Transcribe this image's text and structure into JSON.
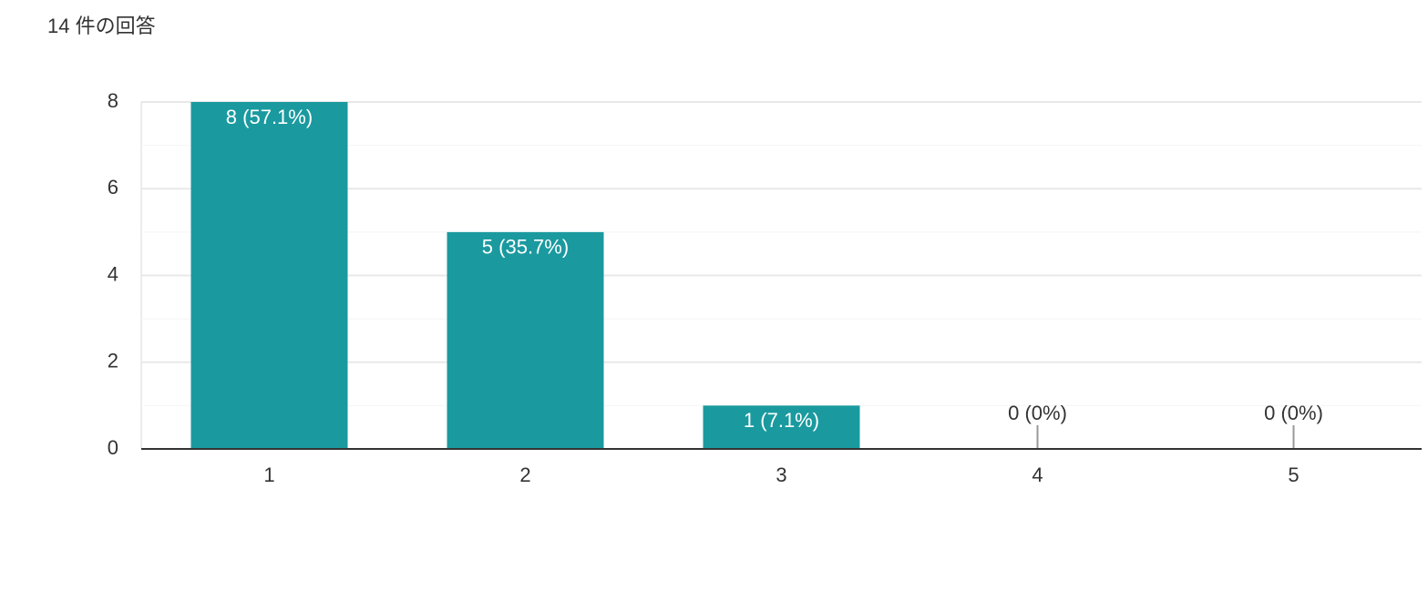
{
  "chart_data": {
    "type": "bar",
    "title": "14 件の回答",
    "categories": [
      "1",
      "2",
      "3",
      "4",
      "5"
    ],
    "values": [
      8,
      5,
      1,
      0,
      0
    ],
    "value_labels": [
      "8 (57.1%)",
      "5 (35.7%)",
      "1 (7.1%)",
      "0 (0%)",
      "0 (0%)"
    ],
    "color": "#1a9a9f",
    "ylim": [
      0,
      8
    ],
    "yticks": [
      0,
      2,
      4,
      6,
      8
    ],
    "minor_yticks": [
      1,
      3,
      5,
      7
    ],
    "grid": true
  }
}
